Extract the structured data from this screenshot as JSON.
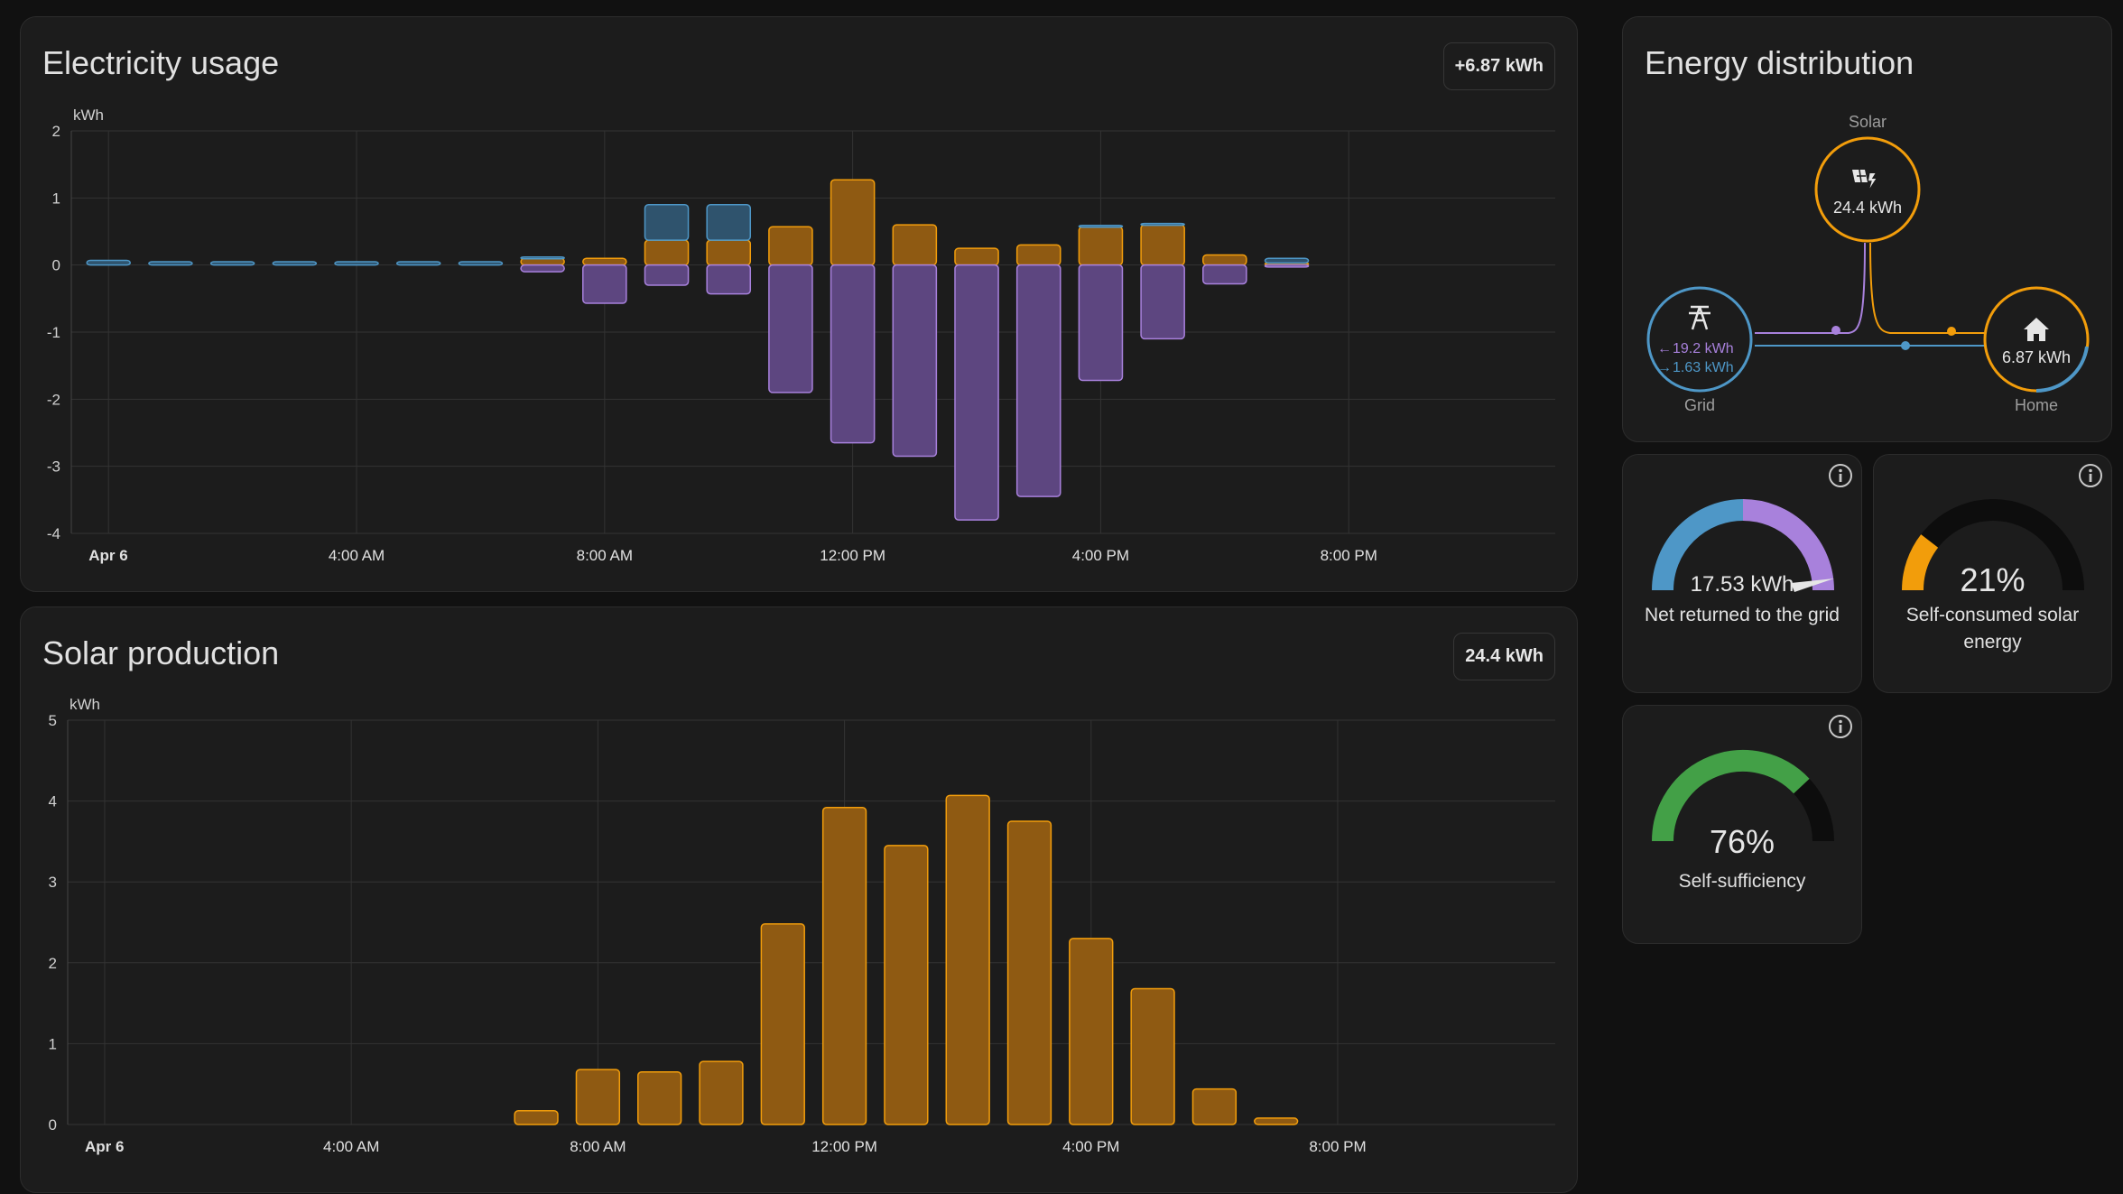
{
  "colors": {
    "solar": "#f29d0b",
    "solar_fill": "#8f5a12",
    "grid_return": "#a881dc",
    "grid_return_fill": "#5d4680",
    "grid_import": "#4e97c7",
    "grid_import_fill": "#2f536d",
    "home": "#f29d0b",
    "self_sufficiency": "#43a047",
    "gauge_track": "#0d0d0d"
  },
  "usage_card": {
    "title": "Electricity usage",
    "badge": "+6.87 kWh"
  },
  "solar_card": {
    "title": "Solar production",
    "badge": "24.4 kWh"
  },
  "distribution": {
    "title": "Energy distribution",
    "solar_label": "Solar",
    "solar_value": "24.4 kWh",
    "grid_label": "Grid",
    "grid_out": "19.2 kWh",
    "grid_in": "1.63 kWh",
    "home_label": "Home",
    "home_value": "6.87 kWh",
    "icons": [
      "solar-panel-icon",
      "transmission-tower-icon",
      "home-icon"
    ]
  },
  "gauges": [
    {
      "value": "17.53 kWh",
      "label": "Net returned to the grid",
      "fraction": 0.57,
      "icon": "info-icon"
    },
    {
      "value": "21%",
      "label": "Self-consumed solar energy",
      "fraction": 0.21,
      "icon": "info-icon"
    },
    {
      "value": "76%",
      "label": "Self-sufficiency",
      "fraction": 0.76,
      "icon": "info-icon"
    }
  ],
  "chart_data": [
    {
      "type": "bar",
      "title": "Electricity usage",
      "ylabel": "kWh",
      "ylim": [
        -4,
        2
      ],
      "yticks": [
        2,
        1,
        0,
        -1,
        -2,
        -3,
        -4
      ],
      "grid": true,
      "x_tick_labels": [
        "Apr 6",
        "4:00 AM",
        "8:00 AM",
        "12:00 PM",
        "4:00 PM",
        "8:00 PM"
      ],
      "hours": [
        0,
        1,
        2,
        3,
        4,
        5,
        6,
        7,
        8,
        9,
        10,
        11,
        12,
        13,
        14,
        15,
        16,
        17,
        18,
        19
      ],
      "series": [
        {
          "key": "solar",
          "values": [
            0,
            0,
            0,
            0,
            0,
            0,
            0,
            0.1,
            0.1,
            0.37,
            0.37,
            0.57,
            1.27,
            0.6,
            0.25,
            0.3,
            0.57,
            0.6,
            0.15,
            0.03
          ]
        },
        {
          "key": "grid_import",
          "values": [
            0.07,
            0.05,
            0.05,
            0.05,
            0.05,
            0.05,
            0.05,
            0.02,
            0,
            0.53,
            0.53,
            0,
            0,
            0,
            0,
            0,
            0.02,
            0.02,
            0,
            0.07
          ]
        },
        {
          "key": "grid_return",
          "values": [
            0,
            0,
            0,
            0,
            0,
            0,
            0,
            -0.1,
            -0.57,
            -0.3,
            -0.43,
            -1.9,
            -2.65,
            -2.85,
            -3.8,
            -3.45,
            -1.72,
            -1.1,
            -0.28,
            -0.03
          ]
        }
      ]
    },
    {
      "type": "bar",
      "title": "Solar production",
      "ylabel": "kWh",
      "ylim": [
        0,
        5
      ],
      "yticks": [
        5,
        4,
        3,
        2,
        1,
        0
      ],
      "grid": true,
      "x_tick_labels": [
        "Apr 6",
        "4:00 AM",
        "8:00 AM",
        "12:00 PM",
        "4:00 PM",
        "8:00 PM"
      ],
      "hours": [
        7,
        8,
        9,
        10,
        11,
        12,
        13,
        14,
        15,
        16,
        17,
        18,
        19
      ],
      "values": [
        0.17,
        0.68,
        0.65,
        0.78,
        2.48,
        3.92,
        3.45,
        4.07,
        3.75,
        2.3,
        1.68,
        0.44,
        0.08
      ]
    }
  ]
}
